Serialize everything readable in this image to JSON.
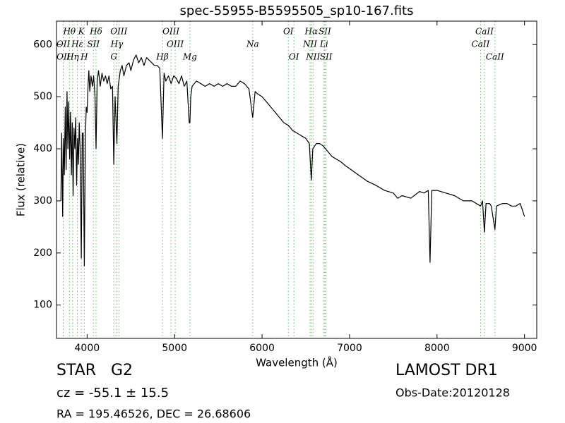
{
  "chart_data": {
    "type": "line",
    "title": "spec-55955-B5595505_sp10-167.fits",
    "xlabel": "Wavelength (Å)",
    "ylabel": "Flux (relative)",
    "color": "#000000",
    "line_color": "#66bb66",
    "xlim": [
      3650,
      9140
    ],
    "ylim": [
      36,
      645
    ],
    "xticks": [
      4000,
      5000,
      6000,
      7000,
      8000,
      9000
    ],
    "yticks": [
      100,
      200,
      300,
      400,
      500,
      600
    ],
    "x": [
      3700,
      3710,
      3720,
      3730,
      3740,
      3750,
      3760,
      3770,
      3780,
      3790,
      3800,
      3810,
      3820,
      3830,
      3840,
      3850,
      3860,
      3870,
      3880,
      3890,
      3900,
      3910,
      3920,
      3933,
      3945,
      3955,
      3968,
      3980,
      3990,
      4000,
      4010,
      4020,
      4030,
      4045,
      4060,
      4075,
      4090,
      4102,
      4115,
      4130,
      4150,
      4170,
      4190,
      4210,
      4230,
      4250,
      4270,
      4290,
      4305,
      4320,
      4340,
      4355,
      4380,
      4400,
      4420,
      4450,
      4480,
      4500,
      4530,
      4560,
      4590,
      4620,
      4650,
      4680,
      4710,
      4740,
      4770,
      4800,
      4830,
      4861,
      4880,
      4900,
      4930,
      4960,
      4990,
      5020,
      5050,
      5080,
      5110,
      5140,
      5167,
      5175,
      5185,
      5200,
      5250,
      5300,
      5350,
      5400,
      5450,
      5500,
      5550,
      5600,
      5650,
      5700,
      5750,
      5800,
      5850,
      5893,
      5920,
      5950,
      6000,
      6050,
      6100,
      6150,
      6200,
      6250,
      6300,
      6350,
      6400,
      6450,
      6500,
      6540,
      6563,
      6580,
      6620,
      6660,
      6700,
      6750,
      6800,
      6850,
      6900,
      6950,
      7000,
      7100,
      7200,
      7300,
      7400,
      7500,
      7550,
      7600,
      7700,
      7800,
      7850,
      7900,
      7920,
      7940,
      8000,
      8100,
      8200,
      8300,
      8400,
      8498,
      8520,
      8542,
      8560,
      8600,
      8620,
      8662,
      8680,
      8750,
      8800,
      8850,
      8900,
      8950,
      9000
    ],
    "values": [
      300,
      430,
      270,
      420,
      350,
      480,
      360,
      510,
      400,
      490,
      380,
      470,
      350,
      450,
      310,
      440,
      400,
      460,
      330,
      420,
      370,
      450,
      400,
      190,
      430,
      430,
      175,
      420,
      480,
      470,
      520,
      550,
      510,
      540,
      520,
      540,
      500,
      400,
      530,
      550,
      520,
      545,
      530,
      540,
      525,
      540,
      515,
      520,
      370,
      500,
      410,
      520,
      550,
      560,
      540,
      560,
      565,
      550,
      570,
      580,
      565,
      575,
      560,
      575,
      570,
      565,
      560,
      560,
      555,
      420,
      545,
      530,
      540,
      525,
      540,
      535,
      525,
      540,
      520,
      530,
      450,
      450,
      500,
      520,
      530,
      525,
      520,
      525,
      520,
      525,
      520,
      525,
      520,
      520,
      530,
      525,
      515,
      460,
      510,
      505,
      500,
      490,
      480,
      470,
      460,
      450,
      445,
      435,
      430,
      425,
      420,
      410,
      340,
      400,
      410,
      410,
      405,
      395,
      385,
      380,
      375,
      368,
      362,
      350,
      338,
      330,
      320,
      315,
      305,
      310,
      305,
      318,
      315,
      320,
      182,
      320,
      320,
      315,
      310,
      300,
      300,
      290,
      300,
      240,
      295,
      295,
      290,
      245,
      290,
      295,
      295,
      290,
      290,
      295,
      270
    ],
    "line_labels": [
      [
        {
          "label": "Hθ",
          "x": 3798
        },
        {
          "label": "K",
          "x": 3934
        },
        {
          "label": "Hδ",
          "x": 4102
        },
        {
          "label": "OIII",
          "x": 4363
        },
        {
          "label": "OIII",
          "x": 4959
        },
        {
          "label": "OI",
          "x": 6300
        },
        {
          "label": "Hα",
          "x": 6563
        },
        {
          "label": "SII",
          "x": 6717
        },
        {
          "label": "CaII",
          "x": 8542
        }
      ],
      [
        {
          "label": "OII",
          "x": 3727
        },
        {
          "label": "Hε",
          "x": 3889
        },
        {
          "label": "SII",
          "x": 4072
        },
        {
          "label": "Hγ",
          "x": 4340
        },
        {
          "label": "OIII",
          "x": 5007
        },
        {
          "label": "Na",
          "x": 5893
        },
        {
          "label": "NII",
          "x": 6548
        },
        {
          "label": "Li",
          "x": 6708
        },
        {
          "label": "CaII",
          "x": 8498
        }
      ],
      [
        {
          "label": "OII",
          "x": 3729
        },
        {
          "label": "Hη",
          "x": 3835
        },
        {
          "label": "H",
          "x": 3968
        },
        {
          "label": "G",
          "x": 4305
        },
        {
          "label": "Hβ",
          "x": 4861
        },
        {
          "label": "Mg",
          "x": 5175
        },
        {
          "label": "OI",
          "x": 6364
        },
        {
          "label": "NII",
          "x": 6583
        },
        {
          "label": "SII",
          "x": 6731
        },
        {
          "label": "CaII",
          "x": 8662
        }
      ]
    ]
  },
  "info": {
    "class": "STAR   G2",
    "cz": "cz = -55.1 ± 15.5",
    "coords": "RA = 195.46526, DEC = 26.68606",
    "survey": "LAMOST DR1",
    "date": "Obs-Date:20120128"
  }
}
